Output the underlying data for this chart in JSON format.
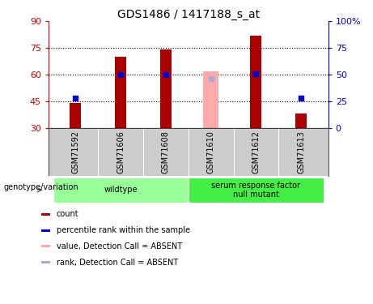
{
  "title": "GDS1486 / 1417188_s_at",
  "samples": [
    "GSM71592",
    "GSM71606",
    "GSM71608",
    "GSM71610",
    "GSM71612",
    "GSM71613"
  ],
  "ylim_left": [
    30,
    90
  ],
  "ylim_right": [
    0,
    100
  ],
  "yticks_left": [
    30,
    45,
    60,
    75,
    90
  ],
  "yticks_right": [
    0,
    25,
    50,
    75,
    100
  ],
  "ytick_labels_right": [
    "0",
    "25",
    "50",
    "75",
    "100%"
  ],
  "bar_bottom": 30,
  "bar_color_normal": "#aa0000",
  "bar_color_absent": "#ffaaaa",
  "dot_color_normal": "#0000cc",
  "dot_color_absent": "#aaaacc",
  "bar_tops_normal": [
    44,
    70,
    74,
    null,
    82,
    38
  ],
  "bar_tops_absent": [
    null,
    null,
    null,
    62,
    null,
    null
  ],
  "dot_vals_normal_pct": [
    28,
    50,
    50,
    null,
    51,
    28
  ],
  "dot_vals_absent_pct": [
    null,
    null,
    null,
    46,
    null,
    null
  ],
  "genotype_groups": [
    {
      "label": "wildtype",
      "start": 0,
      "end": 3,
      "color": "#99ff99"
    },
    {
      "label": "serum response factor\nnull mutant",
      "start": 3,
      "end": 6,
      "color": "#44ee44"
    }
  ],
  "left_axis_color": "#cc0000",
  "right_axis_color": "#0000cc",
  "bg_color": "#ffffff",
  "sample_area_color": "#cccccc",
  "legend_items": [
    {
      "color": "#aa0000",
      "label": "count"
    },
    {
      "color": "#0000cc",
      "label": "percentile rank within the sample"
    },
    {
      "color": "#ffaaaa",
      "label": "value, Detection Call = ABSENT"
    },
    {
      "color": "#aaaacc",
      "label": "rank, Detection Call = ABSENT"
    }
  ]
}
